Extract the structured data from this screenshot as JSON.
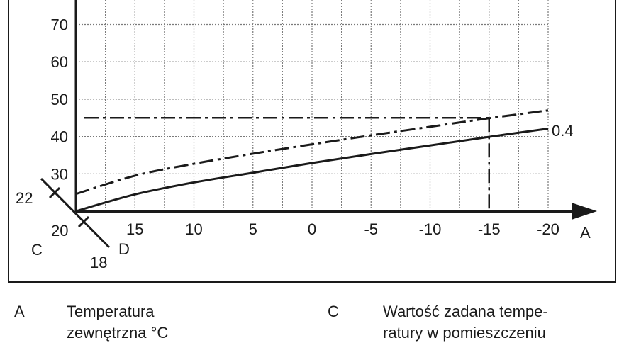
{
  "chart_data": {
    "type": "line",
    "x": [
      20,
      15,
      10,
      5,
      0,
      -5,
      -10,
      -15,
      -20
    ],
    "x_tick_labels": [
      "20",
      "15",
      "10",
      "5",
      "0",
      "-5",
      "-10",
      "-15",
      "-20"
    ],
    "y_tick_labels": [
      "30",
      "40",
      "50",
      "60",
      "70"
    ],
    "y_ticks": [
      30,
      40,
      50,
      60,
      70
    ],
    "xlim": [
      20,
      -20
    ],
    "ylim": [
      20,
      80
    ],
    "grid": true,
    "x_axis_letter": "A",
    "series": [
      {
        "name": "0.4",
        "style": "solid",
        "values": [
          20,
          24.5,
          27.7,
          30.3,
          32.9,
          35.3,
          37.6,
          39.9,
          42.1
        ]
      },
      {
        "name": "",
        "style": "dash-dot",
        "values": [
          24.6,
          29.5,
          32.7,
          35.4,
          37.9,
          40.3,
          42.6,
          44.9,
          47.0
        ]
      }
    ],
    "reference_lines": [
      {
        "type": "horizontal",
        "y": 45,
        "x_from": 20,
        "x_to": -15,
        "style": "dash-dot"
      },
      {
        "type": "vertical",
        "x": -15,
        "y_from": 20,
        "y_to": 45,
        "style": "dash-dot"
      }
    ],
    "room_setpoint_scale": {
      "letter_c": "C",
      "letter_d": "D",
      "labels": [
        "22",
        "20",
        "18"
      ]
    }
  },
  "legend": [
    {
      "key": "A",
      "text_lines": [
        "Temperatura",
        "zewnętrzna °C"
      ]
    },
    {
      "key": "C",
      "text_lines": [
        "Wartość zadana tempe-",
        "ratury w pomieszczeniu"
      ]
    }
  ]
}
